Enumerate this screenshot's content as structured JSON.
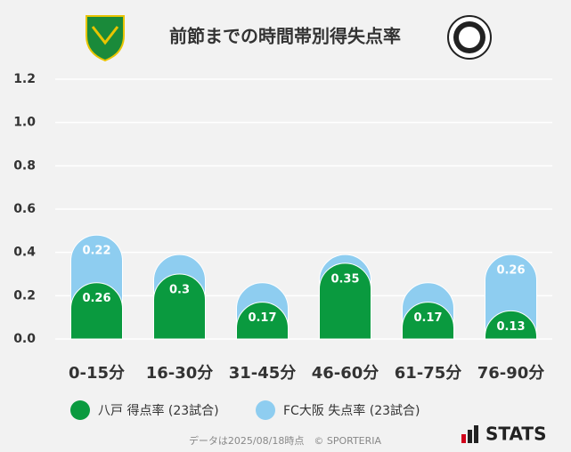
{
  "chart_data": {
    "type": "stacked_bar",
    "title": "前節までの時間帯別得失点率",
    "categories": [
      "0-15分",
      "16-30分",
      "31-45分",
      "46-60分",
      "61-75分",
      "76-90分"
    ],
    "series": [
      {
        "name": "八戸 得点率 (23試合)",
        "color": "#0a9a3f",
        "values": [
          0.26,
          0.3,
          0.17,
          0.35,
          0.17,
          0.13
        ]
      },
      {
        "name": "FC大阪 失点率 (23試合)",
        "color": "#8ecdf0",
        "values": [
          0.22,
          0.09,
          0.09,
          0.04,
          0.09,
          0.26
        ],
        "value_labels": [
          "0.22",
          null,
          null,
          null,
          null,
          "0.26"
        ]
      }
    ],
    "ylim": [
      0,
      1.2
    ],
    "yticks": [
      {
        "value": 0,
        "label": "0.0"
      },
      0.2,
      0.4,
      0.6,
      0.8,
      {
        "value": 1,
        "label": "1.0"
      },
      1.2
    ],
    "grid": true,
    "footnote": "データは2025/08/18時点　© SPORTERIA",
    "brand": "STATS"
  }
}
